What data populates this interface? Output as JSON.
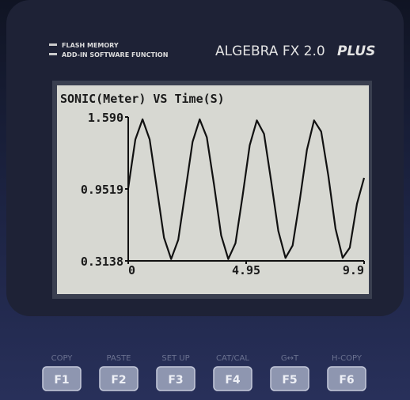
{
  "device": {
    "features": [
      "FLASH MEMORY",
      "ADD-IN SOFTWARE FUNCTION"
    ],
    "model": "ALGEBRA FX 2.0",
    "model_suffix": "PLUS"
  },
  "chart_data": {
    "type": "line",
    "title": "SONIC(Meter) VS Time(S)",
    "x": [
      0,
      0.3,
      0.6,
      0.9,
      1.2,
      1.5,
      1.8,
      2.1,
      2.4,
      2.7,
      3.0,
      3.3,
      3.6,
      3.9,
      4.2,
      4.5,
      4.8,
      5.1,
      5.4,
      5.7,
      6.0,
      6.3,
      6.6,
      6.9,
      7.2,
      7.5,
      7.8,
      8.1,
      8.4,
      8.7,
      9.0,
      9.3,
      9.6,
      9.9
    ],
    "values": [
      0.96,
      1.39,
      1.57,
      1.39,
      0.96,
      0.52,
      0.33,
      0.5,
      0.93,
      1.37,
      1.57,
      1.41,
      0.99,
      0.54,
      0.33,
      0.47,
      0.89,
      1.34,
      1.56,
      1.44,
      1.02,
      0.58,
      0.34,
      0.45,
      0.85,
      1.3,
      1.56,
      1.46,
      1.07,
      0.6,
      0.34,
      0.43,
      0.82,
      1.05
    ],
    "color": "#111111",
    "xlim": [
      0,
      9.9
    ],
    "xticks": [
      0,
      4.95,
      9.9
    ],
    "ylim": [
      0.3138,
      1.59
    ],
    "yticks": [
      0.3138,
      0.9519,
      {
        "value": 1.59,
        "label": "1.590"
      }
    ]
  },
  "function_keys": [
    {
      "label": "COPY",
      "key": "F1"
    },
    {
      "label": "PASTE",
      "key": "F2"
    },
    {
      "label": "SET UP",
      "key": "F3"
    },
    {
      "label": "CAT/CAL",
      "key": "F4"
    },
    {
      "label": "G↔T",
      "key": "F5"
    },
    {
      "label": "H-COPY",
      "key": "F6"
    }
  ]
}
